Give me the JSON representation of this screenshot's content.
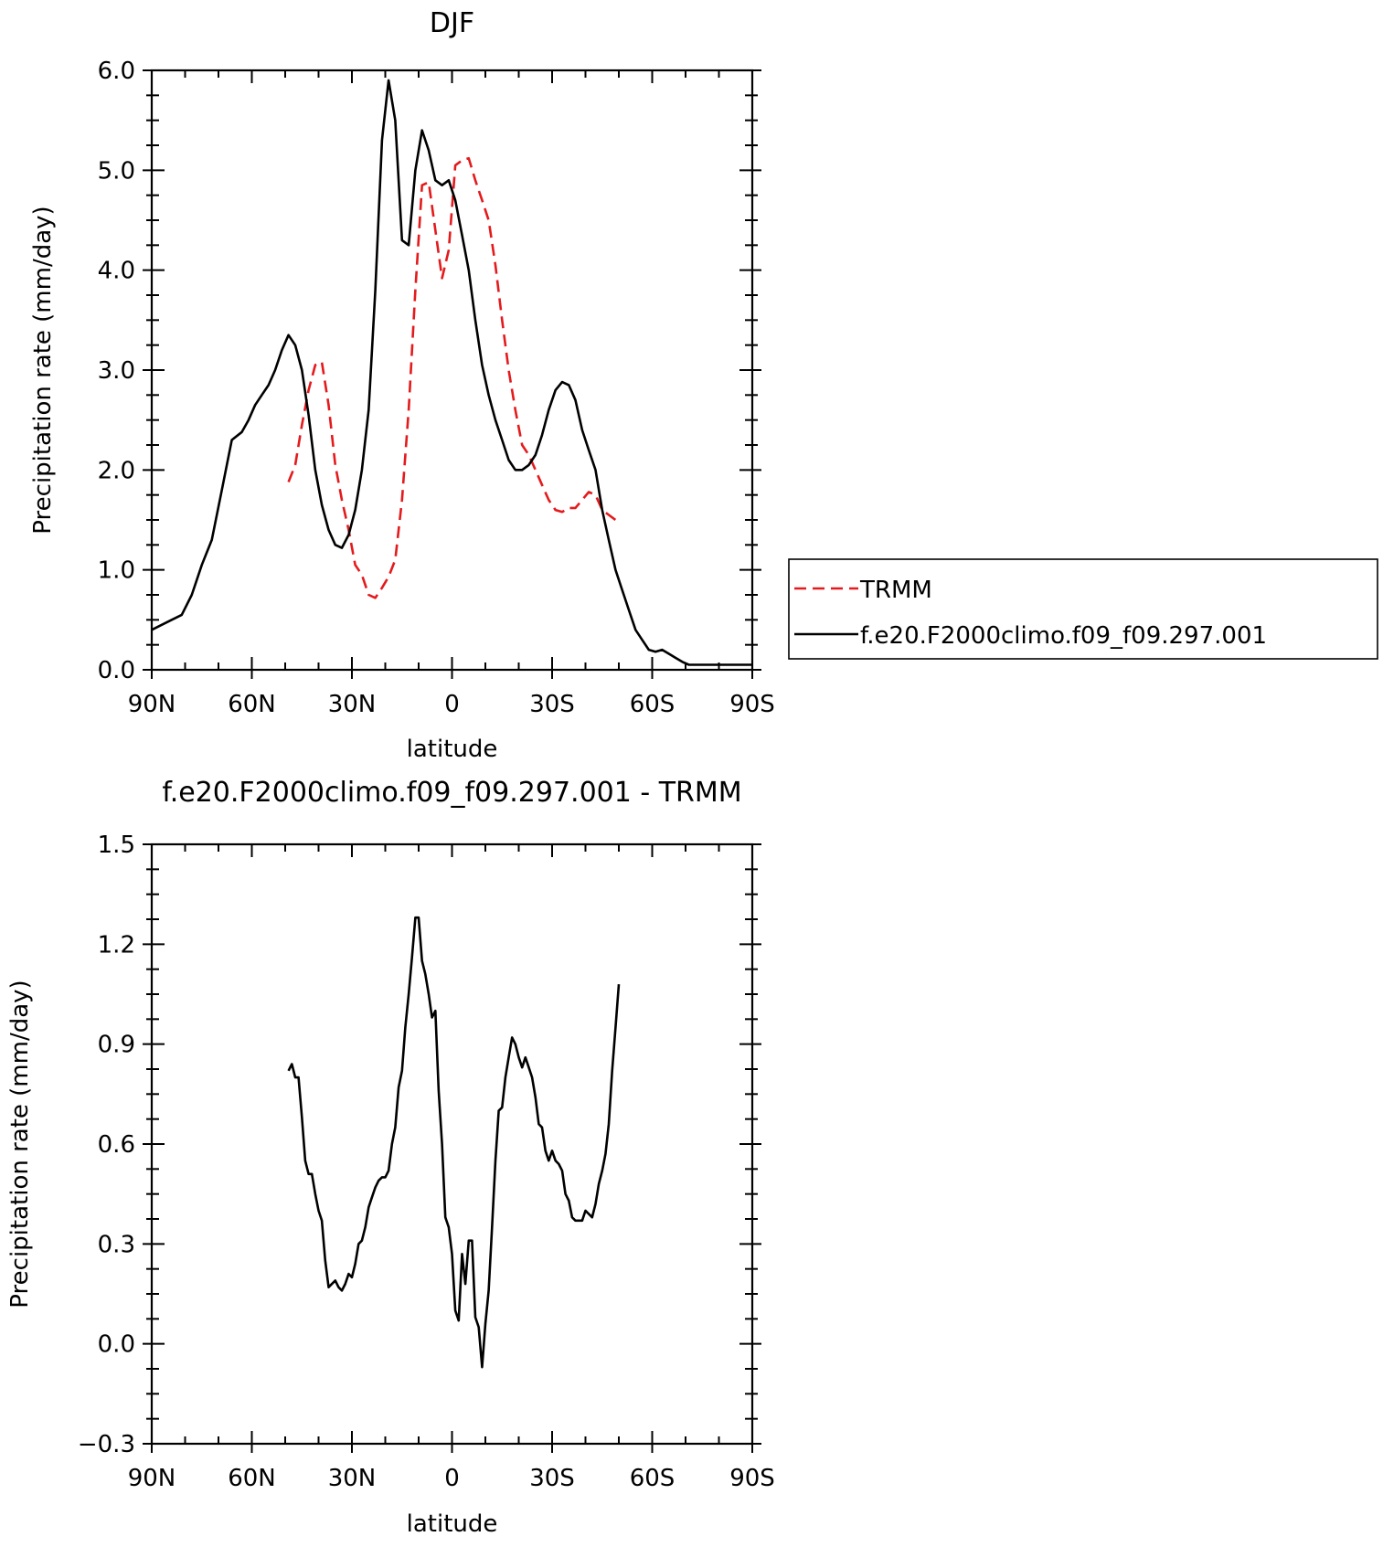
{
  "chart_data": [
    {
      "type": "line",
      "title": "DJF",
      "xlabel": "latitude",
      "ylabel": "Precipitation rate (mm/day)",
      "xlim": [
        90,
        -90
      ],
      "ylim": [
        0,
        6
      ],
      "x_ticks": [
        90,
        60,
        30,
        0,
        -30,
        -60,
        -90
      ],
      "x_tick_labels": [
        "90N",
        "60N",
        "30N",
        "0",
        "30S",
        "60S",
        "90S"
      ],
      "y_ticks": [
        0,
        1,
        2,
        3,
        4,
        5,
        6
      ],
      "y_tick_labels": [
        "0.0",
        "1.0",
        "2.0",
        "3.0",
        "4.0",
        "5.0",
        "6.0"
      ],
      "legend_position": "right",
      "series": [
        {
          "name": "TRMM",
          "color": "#e41a1c",
          "dash": "dashed",
          "x": [
            49,
            47,
            45,
            43,
            41,
            39,
            37,
            35,
            33,
            31,
            29,
            27,
            25,
            23,
            21,
            19,
            17,
            15,
            13,
            11,
            9,
            7,
            5,
            3,
            1,
            -1,
            -3,
            -5,
            -7,
            -9,
            -11,
            -13,
            -15,
            -17,
            -19,
            -21,
            -23,
            -25,
            -27,
            -29,
            -31,
            -33,
            -35,
            -37,
            -39,
            -41,
            -43,
            -45,
            -47,
            -49
          ],
          "y": [
            1.88,
            2.05,
            2.45,
            2.8,
            3.05,
            3.08,
            2.65,
            2.05,
            1.7,
            1.4,
            1.05,
            0.95,
            0.75,
            0.72,
            0.82,
            0.93,
            1.1,
            1.7,
            2.6,
            3.8,
            4.85,
            4.88,
            4.4,
            3.92,
            4.2,
            5.05,
            5.1,
            5.12,
            4.9,
            4.7,
            4.5,
            4.05,
            3.5,
            3.0,
            2.6,
            2.25,
            2.15,
            2.0,
            1.85,
            1.7,
            1.6,
            1.58,
            1.62,
            1.62,
            1.7,
            1.78,
            1.75,
            1.6,
            1.55,
            1.5
          ]
        },
        {
          "name": "f.e20.F2000climo.f09_f09.297.001",
          "color": "#000000",
          "dash": "solid",
          "x": [
            90,
            87,
            84,
            81,
            78,
            75,
            72,
            69,
            66,
            63,
            61,
            59,
            57,
            55,
            53,
            51,
            49,
            47,
            45,
            43,
            41,
            39,
            37,
            35,
            33,
            31,
            29,
            27,
            25,
            23,
            21,
            19,
            17,
            15,
            13,
            11,
            9,
            7,
            5,
            3,
            1,
            -1,
            -3,
            -5,
            -7,
            -9,
            -11,
            -13,
            -15,
            -17,
            -19,
            -21,
            -23,
            -25,
            -27,
            -29,
            -31,
            -33,
            -35,
            -37,
            -39,
            -41,
            -43,
            -45,
            -47,
            -49,
            -51,
            -53,
            -55,
            -57,
            -59,
            -61,
            -63,
            -65,
            -67,
            -69,
            -71,
            -73,
            -75,
            -77,
            -79,
            -81,
            -83,
            -85,
            -87,
            -90
          ],
          "y": [
            0.4,
            0.45,
            0.5,
            0.55,
            0.75,
            1.05,
            1.3,
            1.8,
            2.3,
            2.38,
            2.5,
            2.65,
            2.75,
            2.85,
            3.0,
            3.2,
            3.35,
            3.25,
            3.0,
            2.55,
            2.0,
            1.65,
            1.4,
            1.25,
            1.22,
            1.35,
            1.6,
            2.0,
            2.6,
            3.8,
            5.3,
            5.9,
            5.5,
            4.3,
            4.25,
            5.0,
            5.4,
            5.2,
            4.9,
            4.85,
            4.9,
            4.7,
            4.35,
            4.0,
            3.5,
            3.05,
            2.75,
            2.5,
            2.3,
            2.1,
            2.0,
            2.0,
            2.05,
            2.15,
            2.35,
            2.6,
            2.8,
            2.88,
            2.85,
            2.7,
            2.4,
            2.2,
            2.0,
            1.6,
            1.3,
            1.0,
            0.8,
            0.6,
            0.4,
            0.3,
            0.2,
            0.18,
            0.2,
            0.16,
            0.12,
            0.08,
            0.05,
            0.05,
            0.05,
            0.05,
            0.05,
            0.05,
            0.05,
            0.05,
            0.05,
            0.05
          ]
        }
      ]
    },
    {
      "type": "line",
      "title": "f.e20.F2000climo.f09_f09.297.001 - TRMM",
      "xlabel": "latitude",
      "ylabel": "Precipitation rate (mm/day)",
      "xlim": [
        90,
        -90
      ],
      "ylim": [
        -0.3,
        1.5
      ],
      "x_ticks": [
        90,
        60,
        30,
        0,
        -30,
        -60,
        -90
      ],
      "x_tick_labels": [
        "90N",
        "60N",
        "30N",
        "0",
        "30S",
        "60S",
        "90S"
      ],
      "y_ticks": [
        -0.3,
        0,
        0.3,
        0.6,
        0.9,
        1.2,
        1.5
      ],
      "y_tick_labels": [
        "-0.3",
        "0.0",
        "0.3",
        "0.6",
        "0.9",
        "1.2",
        "1.5"
      ],
      "series": [
        {
          "color": "#000000",
          "dash": "solid",
          "x": [
            49,
            48,
            47,
            46,
            45,
            44,
            43,
            42,
            41,
            40,
            39,
            38,
            37,
            36,
            35,
            34,
            33,
            32,
            31,
            30,
            29,
            28,
            27,
            26,
            25,
            24,
            23,
            22,
            21,
            20,
            19,
            18,
            17,
            16,
            15,
            14,
            13,
            12,
            11,
            10,
            9,
            8,
            7,
            6,
            5,
            4,
            3,
            2,
            1,
            0,
            -1,
            -2,
            -3,
            -4,
            -5,
            -6,
            -7,
            -8,
            -9,
            -10,
            -11,
            -12,
            -13,
            -14,
            -15,
            -16,
            -17,
            -18,
            -19,
            -20,
            -21,
            -22,
            -23,
            -24,
            -25,
            -26,
            -27,
            -28,
            -29,
            -30,
            -31,
            -32,
            -33,
            -34,
            -35,
            -36,
            -37,
            -38,
            -39,
            -40,
            -41,
            -42,
            -43,
            -44,
            -45,
            -46,
            -47,
            -48,
            -49,
            -50
          ],
          "y": [
            0.82,
            0.84,
            0.8,
            0.8,
            0.68,
            0.55,
            0.51,
            0.51,
            0.45,
            0.4,
            0.37,
            0.25,
            0.17,
            0.18,
            0.19,
            0.17,
            0.16,
            0.18,
            0.21,
            0.2,
            0.24,
            0.3,
            0.31,
            0.35,
            0.41,
            0.44,
            0.47,
            0.49,
            0.5,
            0.5,
            0.52,
            0.6,
            0.65,
            0.77,
            0.82,
            0.95,
            1.05,
            1.16,
            1.28,
            1.28,
            1.15,
            1.11,
            1.05,
            0.98,
            1.0,
            0.76,
            0.6,
            0.38,
            0.35,
            0.27,
            0.1,
            0.07,
            0.27,
            0.18,
            0.31,
            0.31,
            0.08,
            0.05,
            -0.07,
            0.06,
            0.16,
            0.35,
            0.55,
            0.7,
            0.71,
            0.8,
            0.86,
            0.92,
            0.9,
            0.86,
            0.83,
            0.86,
            0.83,
            0.8,
            0.74,
            0.66,
            0.65,
            0.58,
            0.55,
            0.58,
            0.55,
            0.54,
            0.52,
            0.45,
            0.43,
            0.38,
            0.37,
            0.37,
            0.37,
            0.4,
            0.39,
            0.38,
            0.42,
            0.48,
            0.52,
            0.57,
            0.66,
            0.82,
            0.95,
            1.08
          ]
        }
      ]
    }
  ]
}
